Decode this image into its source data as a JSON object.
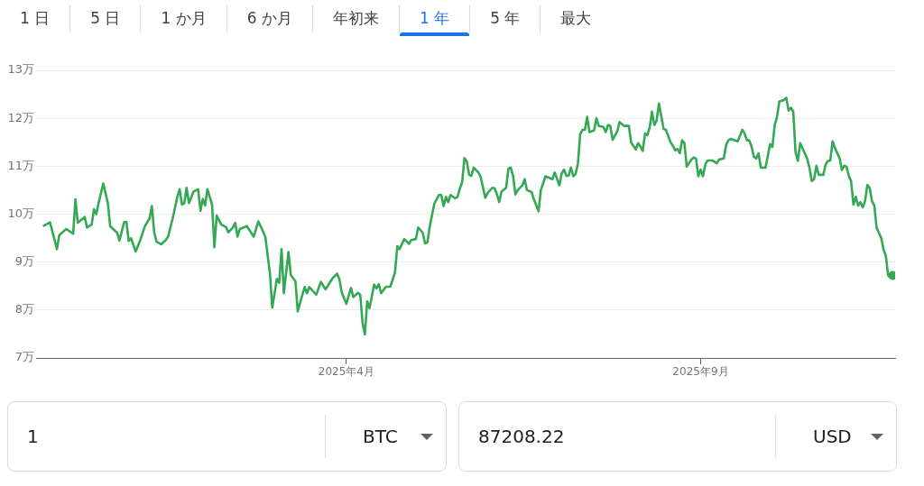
{
  "chart_data": {
    "type": "line",
    "color": "#34a853",
    "x": [
      "2024-11-21",
      "2024-11-24",
      "2024-11-26",
      "2024-11-27",
      "2024-11-28",
      "2024-12-01",
      "2024-12-04",
      "2024-12-05",
      "2024-12-06",
      "2024-12-09",
      "2024-12-10",
      "2024-12-12",
      "2024-12-13",
      "2024-12-14",
      "2024-12-15",
      "2024-12-17",
      "2024-12-19",
      "2024-12-20",
      "2024-12-23",
      "2024-12-24",
      "2024-12-26",
      "2024-12-27",
      "2024-12-28",
      "2024-12-29",
      "2024-12-31",
      "2025-01-02",
      "2025-01-04",
      "2025-01-06",
      "2025-01-07",
      "2025-01-08",
      "2025-01-09",
      "2025-01-11",
      "2025-01-13",
      "2025-01-14",
      "2025-01-16",
      "2025-01-18",
      "2025-01-19",
      "2025-01-20",
      "2025-01-21",
      "2025-01-22",
      "2025-01-23",
      "2025-01-25",
      "2025-01-27",
      "2025-01-28",
      "2025-01-29",
      "2025-01-30",
      "2025-01-31",
      "2025-02-02",
      "2025-02-03",
      "2025-02-04",
      "2025-02-06",
      "2025-02-08",
      "2025-02-09",
      "2025-02-11",
      "2025-02-12",
      "2025-02-13",
      "2025-02-14",
      "2025-02-17",
      "2025-02-20",
      "2025-02-22",
      "2025-02-24",
      "2025-02-25",
      "2025-02-27",
      "2025-02-28",
      "2025-03-02",
      "2025-03-03",
      "2025-03-04",
      "2025-03-05",
      "2025-03-07",
      "2025-03-08",
      "2025-03-10",
      "2025-03-11",
      "2025-03-13",
      "2025-03-14",
      "2025-03-15",
      "2025-03-16",
      "2025-03-19",
      "2025-03-21",
      "2025-03-23",
      "2025-03-26",
      "2025-03-28",
      "2025-03-29",
      "2025-03-30",
      "2025-04-01",
      "2025-04-03",
      "2025-04-04",
      "2025-04-06",
      "2025-04-07",
      "2025-04-08",
      "2025-04-09",
      "2025-04-10",
      "2025-04-11",
      "2025-04-13",
      "2025-04-14",
      "2025-04-15",
      "2025-04-16",
      "2025-04-18",
      "2025-04-20",
      "2025-04-22",
      "2025-04-23",
      "2025-04-24",
      "2025-04-26",
      "2025-04-28",
      "2025-04-29",
      "2025-05-01",
      "2025-05-02",
      "2025-05-04",
      "2025-05-05",
      "2025-05-06",
      "2025-05-07",
      "2025-05-09",
      "2025-05-11",
      "2025-05-12",
      "2025-05-13",
      "2025-05-14",
      "2025-05-15",
      "2025-05-16",
      "2025-05-18",
      "2025-05-19",
      "2025-05-20",
      "2025-05-21",
      "2025-05-22",
      "2025-05-23",
      "2025-05-24",
      "2025-05-25",
      "2025-05-26",
      "2025-05-28",
      "2025-05-29",
      "2025-05-31",
      "2025-06-01",
      "2025-06-03",
      "2025-06-04",
      "2025-06-05",
      "2025-06-06",
      "2025-06-07",
      "2025-06-09",
      "2025-06-10",
      "2025-06-11",
      "2025-06-12",
      "2025-06-13",
      "2025-06-14",
      "2025-06-16",
      "2025-06-17",
      "2025-06-18",
      "2025-06-20",
      "2025-06-21",
      "2025-06-23",
      "2025-06-24",
      "2025-06-26",
      "2025-06-29",
      "2025-06-30",
      "2025-07-02",
      "2025-07-03",
      "2025-07-04",
      "2025-07-05",
      "2025-07-06",
      "2025-07-07",
      "2025-07-08",
      "2025-07-09",
      "2025-07-10",
      "2025-07-11",
      "2025-07-12",
      "2025-07-13",
      "2025-07-14",
      "2025-07-15",
      "2025-07-17",
      "2025-07-18",
      "2025-07-19",
      "2025-07-21",
      "2025-07-22",
      "2025-07-23",
      "2025-07-24",
      "2025-07-25",
      "2025-07-27",
      "2025-07-28",
      "2025-07-30",
      "2025-08-01",
      "2025-08-02",
      "2025-08-04",
      "2025-08-05",
      "2025-08-06",
      "2025-08-07",
      "2025-08-08",
      "2025-08-09",
      "2025-08-10",
      "2025-08-11",
      "2025-08-12",
      "2025-08-13",
      "2025-08-14",
      "2025-08-16",
      "2025-08-17",
      "2025-08-19",
      "2025-08-20",
      "2025-08-21",
      "2025-08-22",
      "2025-08-23",
      "2025-08-24",
      "2025-08-25",
      "2025-08-26",
      "2025-08-28",
      "2025-08-29",
      "2025-08-30",
      "2025-08-31",
      "2025-09-01",
      "2025-09-02",
      "2025-09-03",
      "2025-09-04",
      "2025-09-06",
      "2025-09-08",
      "2025-09-09",
      "2025-09-11",
      "2025-09-12",
      "2025-09-13",
      "2025-09-14",
      "2025-09-17",
      "2025-09-19",
      "2025-09-20",
      "2025-09-21",
      "2025-09-22",
      "2025-09-23",
      "2025-09-24",
      "2025-09-25",
      "2025-09-26",
      "2025-09-27",
      "2025-09-29",
      "2025-10-01",
      "2025-10-02",
      "2025-10-03",
      "2025-10-04",
      "2025-10-05",
      "2025-10-07",
      "2025-10-08",
      "2025-10-09",
      "2025-10-10",
      "2025-10-11",
      "2025-10-12",
      "2025-10-13",
      "2025-10-14",
      "2025-10-16",
      "2025-10-17",
      "2025-10-18",
      "2025-10-19",
      "2025-10-20",
      "2025-10-21",
      "2025-10-22",
      "2025-10-24",
      "2025-10-25",
      "2025-10-26",
      "2025-10-27",
      "2025-10-28",
      "2025-10-29",
      "2025-10-31",
      "2025-11-01",
      "2025-11-02",
      "2025-11-03",
      "2025-11-04",
      "2025-11-05",
      "2025-11-06",
      "2025-11-07",
      "2025-11-08",
      "2025-11-09",
      "2025-11-10",
      "2025-11-11",
      "2025-11-12",
      "2025-11-13",
      "2025-11-14",
      "2025-11-15",
      "2025-11-16",
      "2025-11-17",
      "2025-11-18",
      "2025-11-19",
      "2025-11-20",
      "2025-11-21",
      "2025-11-22",
      "2025-11-23"
    ],
    "values": [
      9.75,
      9.83,
      9.46,
      9.27,
      9.56,
      9.69,
      9.59,
      10.31,
      9.82,
      9.94,
      9.72,
      9.78,
      10.1,
      10,
      10.23,
      10.64,
      10.23,
      9.75,
      9.61,
      9.45,
      9.83,
      9.84,
      9.44,
      9.5,
      9.22,
      9.46,
      9.75,
      9.91,
      10.17,
      9.62,
      9.43,
      9.37,
      9.46,
      9.53,
      9.91,
      10.36,
      10.52,
      10.2,
      10.23,
      10.55,
      10.23,
      10.47,
      10.52,
      10.07,
      10.32,
      10.18,
      10.52,
      10.2,
      9.31,
      9.97,
      9.78,
      9.73,
      9.62,
      9.72,
      9.82,
      9.53,
      9.69,
      9.75,
      9.53,
      9.85,
      9.64,
      9.53,
      8.76,
      8.05,
      8.65,
      8.57,
      9.27,
      8.35,
      9.21,
      8.73,
      8.6,
      7.97,
      8.32,
      8.48,
      8.35,
      8.48,
      8.32,
      8.59,
      8.43,
      8.66,
      8.76,
      8.64,
      8.37,
      8.13,
      8.46,
      8.27,
      8.36,
      8.32,
      7.73,
      7.49,
      8.18,
      8.04,
      8.53,
      8.45,
      8.54,
      8.35,
      8.48,
      8.49,
      8.78,
      9.33,
      9.27,
      9.48,
      9.38,
      9.46,
      9.48,
      9.72,
      9.61,
      9.39,
      9.41,
      9.74,
      10.22,
      10.4,
      10.4,
      10.17,
      10.36,
      10.25,
      10.4,
      10.33,
      10.36,
      10.53,
      10.66,
      11.17,
      11.1,
      10.82,
      10.8,
      10.97,
      10.87,
      10.78,
      10.34,
      10.44,
      10.55,
      10.54,
      10.42,
      10.25,
      10.47,
      10.55,
      10.95,
      10.97,
      10.8,
      10.41,
      10.5,
      10.6,
      10.73,
      10.5,
      10.46,
      10.31,
      10.06,
      10.5,
      10.79,
      10.73,
      10.87,
      10.6,
      10.85,
      10.93,
      10.8,
      10.8,
      10.97,
      10.79,
      10.84,
      11.05,
      11.67,
      11.76,
      11.76,
      12.03,
      11.71,
      11.75,
      12,
      11.84,
      11.82,
      11.71,
      11.86,
      11.84,
      11.55,
      11.73,
      11.92,
      11.84,
      11.84,
      11.49,
      11.35,
      11.48,
      11.41,
      11.32,
      11.68,
      11.65,
      11.81,
      12.14,
      11.86,
      11.95,
      12.31,
      11.78,
      11.76,
      11.5,
      11.43,
      11.33,
      11.36,
      11.27,
      11.54,
      11.48,
      10.99,
      11.14,
      11.18,
      11.16,
      10.79,
      10.93,
      10.79,
      11.03,
      11.12,
      11.12,
      11.06,
      11.14,
      11.16,
      11.44,
      11.54,
      11.57,
      11.52,
      11.76,
      11.68,
      11.54,
      11.54,
      11.41,
      11.2,
      11.16,
      11.27,
      10.97,
      10.97,
      11.46,
      11.4,
      11.86,
      12.03,
      12.35,
      12.38,
      12.43,
      12.16,
      12.22,
      12.14,
      11.29,
      11.11,
      11.48,
      11.27,
      11.16,
      10.97,
      10.69,
      10.73,
      11.01,
      10.82,
      10.82,
      11.04,
      11.11,
      11.12,
      11.52,
      11.38,
      11.17,
      10.92,
      11.01,
      10.99,
      10.8,
      10.68,
      10.2,
      10.36,
      10.18,
      10.25,
      10.14,
      10.27,
      10.61,
      10.55,
      10.27,
      10.18,
      9.72,
      9.61,
      9.5,
      9.26,
      9.13,
      8.72,
      8.68,
      8.72
    ],
    "xlim": [
      "2024-11-18",
      "2025-11-24"
    ],
    "xticks": [
      {
        "value": "2025-04-01",
        "label": "2025年4月"
      },
      {
        "value": "2025-09-01",
        "label": "2025年9月"
      }
    ],
    "ylim": [
      7,
      13
    ],
    "yticks": [
      {
        "value": 7,
        "label": "7万"
      },
      {
        "value": 8,
        "label": "8万"
      },
      {
        "value": 9,
        "label": "9万"
      },
      {
        "value": 10,
        "label": "10万"
      },
      {
        "value": 11,
        "label": "11万"
      },
      {
        "value": 12,
        "label": "12万"
      },
      {
        "value": 13,
        "label": "13万"
      }
    ],
    "grid": "y",
    "legend": false,
    "annotations": [
      "1 日",
      "5 日",
      "1 か月",
      "6 か月",
      "年初来",
      "1 年",
      "5 年",
      "最大",
      "1",
      "BTC",
      "87208.22",
      "USD"
    ]
  }
}
